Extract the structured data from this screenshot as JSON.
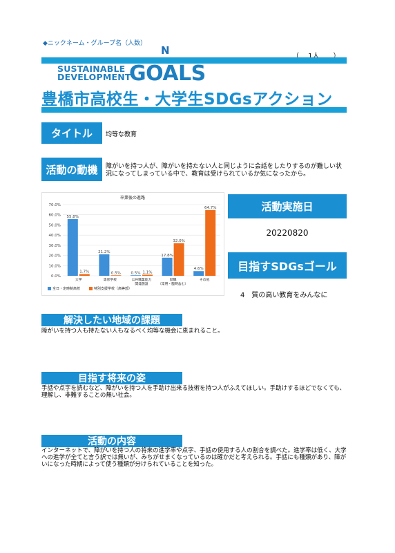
{
  "header": {
    "nickname_label": "◆ニックネーム・グループ名（人数）",
    "name": "N",
    "count": "（　 1人　　）",
    "sdg_line1": "SUSTAINABLE",
    "sdg_line2": "DEVELOPMENT",
    "goals": "GOALS",
    "headline": "豊橋市高校生・大学生SDGsアクション"
  },
  "title": {
    "label": "タイトル",
    "value": "均等な教育"
  },
  "motive": {
    "label": "活動の動機",
    "value": "障がいを持つ人が、障がいを持たない人と同じように会話をしたりするのが難しい状況になってしまっている中で、教育は受けられているか気になったから。"
  },
  "date": {
    "label": "活動実施日",
    "value": "20220820"
  },
  "goal": {
    "label": "目指すSDGsゴール",
    "value": "4　質の高い教育をみんなに"
  },
  "sections": {
    "issue": {
      "label": "解決したい地域の課題",
      "text": "障がいを持つ人も持たない人もなるべく均等な機会に恵まれること。"
    },
    "vision": {
      "label": "目指す将来の姿",
      "text": "手話や点字を読むなど、障がいを持つ人を手助け出来る技術を持つ人がふえてほしい。手助けするほどでなくても、理解し、非難することの無い社会。"
    },
    "content": {
      "label": "活動の内容",
      "text": "インターネットで、障がいを持つ人の将来の進学率や点字、手話の使用する人の割合を調べた。進学率は低く、大学への進学が全てと言う訳では無いが、みちがせまくなっているのは確かだと考えられる。手話にも種類があり、障がいになった時期によって使う種類が分けられていることを知った。"
    }
  },
  "chart_data": {
    "type": "bar",
    "title": "卒業後の進路",
    "categories": [
      "大学",
      "専修学校",
      "公共職業能力開発施設",
      "就職（常用・臨時含む）",
      "その他"
    ],
    "category_lines": [
      [
        "大学"
      ],
      [
        "専修学校"
      ],
      [
        "公共職業能力",
        "開発施設"
      ],
      [
        "就職",
        "（常用・臨時含む）"
      ],
      [
        "その他"
      ]
    ],
    "series": [
      {
        "name": "全日・定時制高校",
        "values": [
          55.8,
          21.2,
          0.5,
          17.8,
          4.6
        ],
        "color": "#3d8fd8"
      },
      {
        "name": "特別支援学校（高等部）",
        "values": [
          1.7,
          0.5,
          1.1,
          32.0,
          64.7
        ],
        "color": "#ef6c1a"
      }
    ],
    "data_labels": [
      [
        "55.8%",
        "21.2%",
        "0.5%",
        "17.8%",
        "4.6%"
      ],
      [
        "1.7%",
        "0.5%",
        "1.1%",
        "32.0%",
        "64.7%"
      ]
    ],
    "yticks": [
      "0.0%",
      "10.0%",
      "20.0%",
      "30.0%",
      "40.0%",
      "50.0%",
      "60.0%",
      "70.0%"
    ],
    "ylim": [
      0,
      70
    ],
    "grid": true,
    "legend": "bottom-left"
  }
}
